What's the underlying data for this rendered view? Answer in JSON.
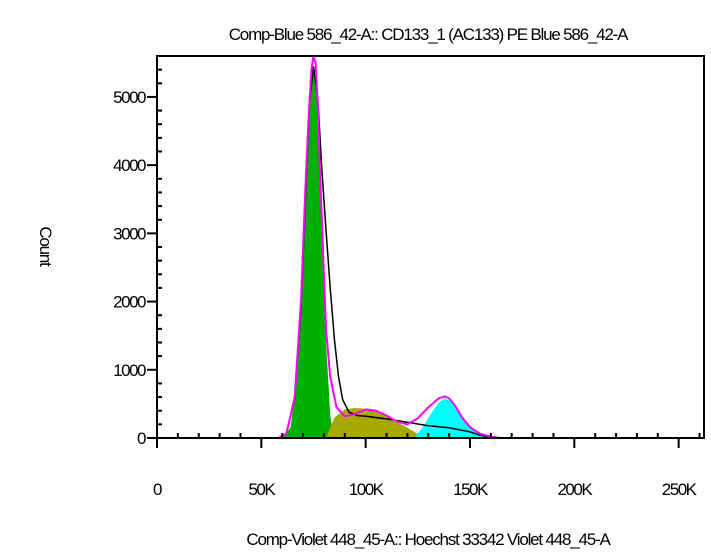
{
  "chart_data": {
    "type": "area",
    "title": "Comp-Blue 586_42-A:: CD133_1 (AC133) PE Blue 586_42-A",
    "xlabel": "Comp-Violet 448_45-A:: Hoechst 33342 Violet 448_45-A",
    "ylabel": "Count",
    "xlim": [
      0,
      262144
    ],
    "ylim": [
      0,
      5600
    ],
    "xticks": [
      0,
      50000,
      100000,
      150000,
      200000,
      250000
    ],
    "xtick_labels": [
      "0",
      "50K",
      "100K",
      "150K",
      "200K",
      "250K"
    ],
    "yticks": [
      0,
      1000,
      2000,
      3000,
      4000,
      5000
    ],
    "ytick_labels": [
      "0",
      "1000",
      "2000",
      "3000",
      "4000",
      "5000"
    ],
    "grid": false,
    "legend": "none",
    "series": [
      {
        "role": "histogram",
        "color": "#ff00ff",
        "x": [
          0,
          58000,
          62000,
          66000,
          69000,
          71000,
          72500,
          74000,
          75000,
          76000,
          77000,
          78000,
          79500,
          81000,
          83000,
          86000,
          90000,
          95000,
          100000,
          105000,
          110000,
          115000,
          120000,
          125000,
          130000,
          135000,
          138000,
          140000,
          143000,
          146000,
          150000,
          155000,
          160000,
          165000,
          200000,
          262144
        ],
        "y": [
          0,
          0,
          60,
          600,
          2000,
          3600,
          4600,
          5400,
          5600,
          5500,
          4900,
          4000,
          2800,
          1600,
          900,
          450,
          320,
          350,
          420,
          400,
          330,
          240,
          200,
          290,
          450,
          580,
          610,
          580,
          470,
          310,
          160,
          60,
          20,
          0,
          0,
          0
        ]
      },
      {
        "role": "model-fit",
        "color": "#000000",
        "x": [
          58000,
          62000,
          66000,
          69000,
          71000,
          73000,
          75000,
          77000,
          79000,
          81000,
          83000,
          85000,
          87000,
          89000,
          92000,
          96000,
          100000,
          110000,
          120000,
          130000,
          140000,
          150000,
          155000,
          160000,
          165000
        ],
        "y": [
          0,
          60,
          580,
          1900,
          3400,
          4900,
          5450,
          5000,
          3950,
          3050,
          2200,
          1450,
          900,
          560,
          380,
          330,
          320,
          280,
          230,
          180,
          150,
          90,
          40,
          15,
          0
        ]
      },
      {
        "role": "component",
        "color": "#00b000",
        "x": [
          60000,
          64000,
          67000,
          69500,
          71500,
          73500,
          75000,
          76500,
          78000,
          79500,
          81000,
          83000,
          84500
        ],
        "y": [
          0,
          150,
          900,
          2300,
          3800,
          5000,
          5450,
          5200,
          4200,
          2700,
          1400,
          350,
          0
        ]
      },
      {
        "role": "component",
        "color": "#a8a800",
        "x": [
          81000,
          85000,
          90000,
          95000,
          100000,
          105000,
          110000,
          115000,
          120000,
          125000,
          130000
        ],
        "y": [
          0,
          300,
          420,
          440,
          430,
          400,
          320,
          230,
          150,
          60,
          0
        ]
      },
      {
        "role": "component",
        "color": "#00ffff",
        "x": [
          123000,
          127000,
          131000,
          135000,
          138000,
          141000,
          144000,
          148000,
          152000,
          156000,
          160000
        ],
        "y": [
          0,
          140,
          340,
          520,
          580,
          530,
          430,
          250,
          110,
          30,
          0
        ]
      }
    ]
  }
}
